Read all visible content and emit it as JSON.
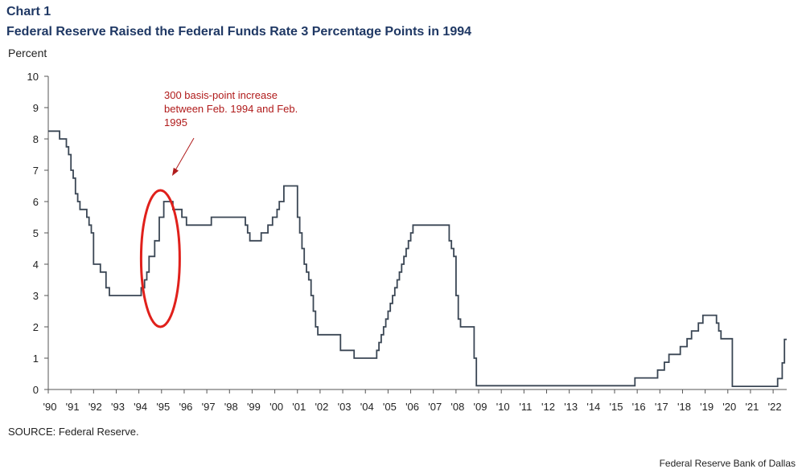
{
  "header": {
    "chart_number": "Chart 1",
    "title": "Federal Reserve Raised the Federal Funds Rate 3 Percentage Points in 1994"
  },
  "footer": {
    "source": "SOURCE: Federal Reserve.",
    "credit": "Federal Reserve Bank of Dallas"
  },
  "colors": {
    "line": "#3a4654",
    "annotation": "#b01b1b",
    "ellipse": "#e0201b",
    "axis": "#555555"
  },
  "chart_data": {
    "type": "line",
    "title": "Federal Reserve Raised the Federal Funds Rate 3 Percentage Points in 1994",
    "xlabel": "",
    "ylabel": "Percent",
    "ylim": [
      0,
      10
    ],
    "xlim": [
      1990,
      2022.6
    ],
    "yticks": [
      "0",
      "1",
      "2",
      "3",
      "4",
      "5",
      "6",
      "7",
      "8",
      "9",
      "10"
    ],
    "xtick_labels": [
      "'90",
      "'91",
      "'92",
      "'93",
      "'94",
      "'95",
      "'96",
      "'97",
      "'98",
      "'99",
      "'00",
      "'01",
      "'02",
      "'03",
      "'04",
      "'05",
      "'06",
      "'07",
      "'08",
      "'09",
      "'10",
      "'11",
      "'12",
      "'13",
      "'14",
      "'15",
      "'16",
      "'17",
      "'18",
      "'19",
      "'20",
      "'21",
      "'22"
    ],
    "grid": false,
    "legend": "none",
    "annotation": {
      "text": "300 basis-point increase between Feb. 1994 and Feb. 1995"
    },
    "series": [
      {
        "x": [
          1990.0,
          1990.5,
          1990.8,
          1990.9,
          1991.0,
          1991.1,
          1991.2,
          1991.3,
          1991.4,
          1991.7,
          1991.8,
          1991.9,
          1992.0,
          1992.3,
          1992.55,
          1992.7,
          1994.1,
          1994.25,
          1994.35,
          1994.45,
          1994.7,
          1994.9,
          1995.1,
          1995.5,
          1995.9,
          1996.1,
          1997.2,
          1998.7,
          1998.8,
          1998.9,
          1999.4,
          1999.7,
          1999.9,
          2000.1,
          2000.2,
          2000.4,
          2001.0,
          2001.1,
          2001.2,
          2001.3,
          2001.4,
          2001.5,
          2001.6,
          2001.7,
          2001.8,
          2001.9,
          2002.0,
          2002.9,
          2003.5,
          2004.5,
          2004.6,
          2004.7,
          2004.8,
          2004.9,
          2005.0,
          2005.1,
          2005.2,
          2005.3,
          2005.4,
          2005.5,
          2005.6,
          2005.7,
          2005.8,
          2005.9,
          2006.0,
          2006.1,
          2006.2,
          2006.3,
          2006.4,
          2006.5,
          2007.7,
          2007.8,
          2007.9,
          2008.0,
          2008.1,
          2008.2,
          2008.3,
          2008.8,
          2008.9,
          2015.9,
          2016.9,
          2017.2,
          2017.4,
          2017.5,
          2017.9,
          2018.2,
          2018.4,
          2018.7,
          2018.9,
          2019.5,
          2019.6,
          2019.7,
          2019.8,
          2020.2,
          2022.2,
          2022.4,
          2022.45,
          2022.5,
          2022.6
        ],
        "y": [
          8.25,
          8.0,
          7.75,
          7.5,
          7.0,
          6.75,
          6.25,
          6.0,
          5.75,
          5.5,
          5.25,
          5.0,
          4.0,
          3.75,
          3.25,
          3.0,
          3.25,
          3.5,
          3.75,
          4.25,
          4.75,
          5.5,
          6.0,
          5.75,
          5.5,
          5.25,
          5.5,
          5.25,
          5.0,
          4.75,
          5.0,
          5.25,
          5.5,
          5.75,
          6.0,
          6.5,
          5.5,
          5.0,
          4.5,
          4.0,
          3.75,
          3.5,
          3.0,
          2.5,
          2.0,
          1.75,
          1.75,
          1.25,
          1.0,
          1.25,
          1.5,
          1.75,
          2.0,
          2.25,
          2.5,
          2.75,
          3.0,
          3.25,
          3.5,
          3.75,
          4.0,
          4.25,
          4.5,
          4.75,
          5.0,
          5.25,
          5.25,
          5.25,
          5.25,
          5.25,
          4.75,
          4.5,
          4.25,
          3.0,
          2.25,
          2.0,
          2.0,
          1.0,
          0.12,
          0.37,
          0.62,
          0.87,
          1.12,
          1.12,
          1.37,
          1.62,
          1.87,
          2.12,
          2.37,
          2.12,
          1.87,
          1.62,
          1.62,
          0.1,
          0.35,
          0.85,
          0.85,
          1.6,
          1.6
        ]
      }
    ]
  }
}
